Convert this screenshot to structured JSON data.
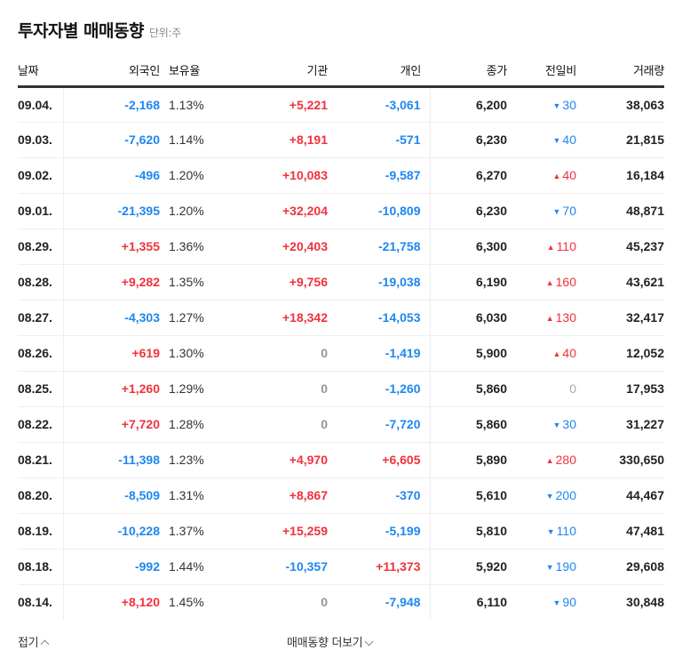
{
  "header": {
    "title": "투자자별 매매동향",
    "unit": "단위:주"
  },
  "colors": {
    "up": "#f0323c",
    "down": "#1e87f0",
    "zero": "#8c96a0"
  },
  "table": {
    "columns": [
      "날짜",
      "외국인",
      "보유율",
      "기관",
      "개인",
      "종가",
      "전일비",
      "거래량"
    ],
    "rows": [
      {
        "date": "09.04.",
        "foreign": "-2,168",
        "foreign_dir": "down",
        "hold": "1.13%",
        "inst": "+5,221",
        "inst_dir": "up",
        "indiv": "-3,061",
        "indiv_dir": "down",
        "close": "6,200",
        "chg": "30",
        "chg_dir": "down",
        "vol": "38,063"
      },
      {
        "date": "09.03.",
        "foreign": "-7,620",
        "foreign_dir": "down",
        "hold": "1.14%",
        "inst": "+8,191",
        "inst_dir": "up",
        "indiv": "-571",
        "indiv_dir": "down",
        "close": "6,230",
        "chg": "40",
        "chg_dir": "down",
        "vol": "21,815"
      },
      {
        "date": "09.02.",
        "foreign": "-496",
        "foreign_dir": "down",
        "hold": "1.20%",
        "inst": "+10,083",
        "inst_dir": "up",
        "indiv": "-9,587",
        "indiv_dir": "down",
        "close": "6,270",
        "chg": "40",
        "chg_dir": "up",
        "vol": "16,184"
      },
      {
        "date": "09.01.",
        "foreign": "-21,395",
        "foreign_dir": "down",
        "hold": "1.20%",
        "inst": "+32,204",
        "inst_dir": "up",
        "indiv": "-10,809",
        "indiv_dir": "down",
        "close": "6,230",
        "chg": "70",
        "chg_dir": "down",
        "vol": "48,871"
      },
      {
        "date": "08.29.",
        "foreign": "+1,355",
        "foreign_dir": "up",
        "hold": "1.36%",
        "inst": "+20,403",
        "inst_dir": "up",
        "indiv": "-21,758",
        "indiv_dir": "down",
        "close": "6,300",
        "chg": "110",
        "chg_dir": "up",
        "vol": "45,237"
      },
      {
        "date": "08.28.",
        "foreign": "+9,282",
        "foreign_dir": "up",
        "hold": "1.35%",
        "inst": "+9,756",
        "inst_dir": "up",
        "indiv": "-19,038",
        "indiv_dir": "down",
        "close": "6,190",
        "chg": "160",
        "chg_dir": "up",
        "vol": "43,621"
      },
      {
        "date": "08.27.",
        "foreign": "-4,303",
        "foreign_dir": "down",
        "hold": "1.27%",
        "inst": "+18,342",
        "inst_dir": "up",
        "indiv": "-14,053",
        "indiv_dir": "down",
        "close": "6,030",
        "chg": "130",
        "chg_dir": "up",
        "vol": "32,417"
      },
      {
        "date": "08.26.",
        "foreign": "+619",
        "foreign_dir": "up",
        "hold": "1.30%",
        "inst": "0",
        "inst_dir": "zero",
        "indiv": "-1,419",
        "indiv_dir": "down",
        "close": "5,900",
        "chg": "40",
        "chg_dir": "up",
        "vol": "12,052"
      },
      {
        "date": "08.25.",
        "foreign": "+1,260",
        "foreign_dir": "up",
        "hold": "1.29%",
        "inst": "0",
        "inst_dir": "zero",
        "indiv": "-1,260",
        "indiv_dir": "down",
        "close": "5,860",
        "chg": "0",
        "chg_dir": "zero",
        "vol": "17,953"
      },
      {
        "date": "08.22.",
        "foreign": "+7,720",
        "foreign_dir": "up",
        "hold": "1.28%",
        "inst": "0",
        "inst_dir": "zero",
        "indiv": "-7,720",
        "indiv_dir": "down",
        "close": "5,860",
        "chg": "30",
        "chg_dir": "down",
        "vol": "31,227"
      },
      {
        "date": "08.21.",
        "foreign": "-11,398",
        "foreign_dir": "down",
        "hold": "1.23%",
        "inst": "+4,970",
        "inst_dir": "up",
        "indiv": "+6,605",
        "indiv_dir": "up",
        "close": "5,890",
        "chg": "280",
        "chg_dir": "up",
        "vol": "330,650"
      },
      {
        "date": "08.20.",
        "foreign": "-8,509",
        "foreign_dir": "down",
        "hold": "1.31%",
        "inst": "+8,867",
        "inst_dir": "up",
        "indiv": "-370",
        "indiv_dir": "down",
        "close": "5,610",
        "chg": "200",
        "chg_dir": "down",
        "vol": "44,467"
      },
      {
        "date": "08.19.",
        "foreign": "-10,228",
        "foreign_dir": "down",
        "hold": "1.37%",
        "inst": "+15,259",
        "inst_dir": "up",
        "indiv": "-5,199",
        "indiv_dir": "down",
        "close": "5,810",
        "chg": "110",
        "chg_dir": "down",
        "vol": "47,481"
      },
      {
        "date": "08.18.",
        "foreign": "-992",
        "foreign_dir": "down",
        "hold": "1.44%",
        "inst": "-10,357",
        "inst_dir": "down",
        "indiv": "+11,373",
        "indiv_dir": "up",
        "close": "5,920",
        "chg": "190",
        "chg_dir": "down",
        "vol": "29,608"
      },
      {
        "date": "08.14.",
        "foreign": "+8,120",
        "foreign_dir": "up",
        "hold": "1.45%",
        "inst": "0",
        "inst_dir": "zero",
        "indiv": "-7,948",
        "indiv_dir": "down",
        "close": "6,110",
        "chg": "90",
        "chg_dir": "down",
        "vol": "30,848"
      }
    ]
  },
  "icons": {
    "up": "▲",
    "down": "▼"
  },
  "footer": {
    "fold_label": "접기",
    "more_label": "매매동향 더보기"
  }
}
